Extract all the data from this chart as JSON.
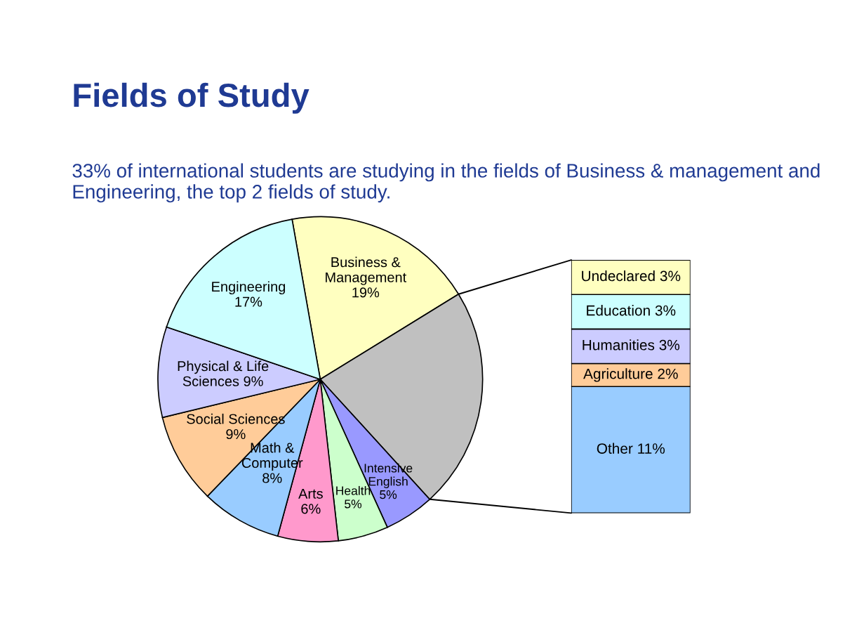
{
  "chart_data": [
    {
      "type": "pie",
      "title": "Fields of Study",
      "subtitle": "33% of international students are studying in the fields of Business & management and Engineering, the top 2 fields of study.",
      "categories": [
        "Business &\nManagement",
        null,
        "Intensive\nEnglish",
        "Health",
        "Arts",
        "Math &\nComputer",
        "Social Sciences",
        "Physical & Life\nSciences 9%",
        "Engineering"
      ],
      "values": [
        19,
        22,
        5,
        5,
        6,
        8,
        9,
        9,
        17
      ],
      "value_labels": [
        "19%",
        null,
        "5%",
        "5%",
        "6%",
        "8%",
        "9%",
        null,
        "17%"
      ],
      "colors": [
        "#ffffc0",
        "#c0c0c0",
        "#9999ff",
        "#ccffcc",
        "#ff99cc",
        "#99ccff",
        "#ffcc99",
        "#ccccff",
        "#ccffff"
      ]
    },
    {
      "type": "bar",
      "stacked": true,
      "categories": [
        null
      ],
      "series": [
        {
          "color": "#99ccff",
          "values": [
            11
          ],
          "value_labels": [
            "Other 11%"
          ]
        },
        {
          "color": "#ffcc99",
          "values": [
            2
          ],
          "value_labels": [
            "Agriculture 2%"
          ]
        },
        {
          "color": "#ccccff",
          "values": [
            3
          ],
          "value_labels": [
            "Humanities 3%"
          ]
        },
        {
          "color": "#ccffff",
          "values": [
            3
          ],
          "value_labels": [
            "Education 3%"
          ]
        },
        {
          "color": "#ffffc0",
          "values": [
            3
          ],
          "value_labels": [
            "Undeclared 3%"
          ]
        }
      ]
    }
  ]
}
